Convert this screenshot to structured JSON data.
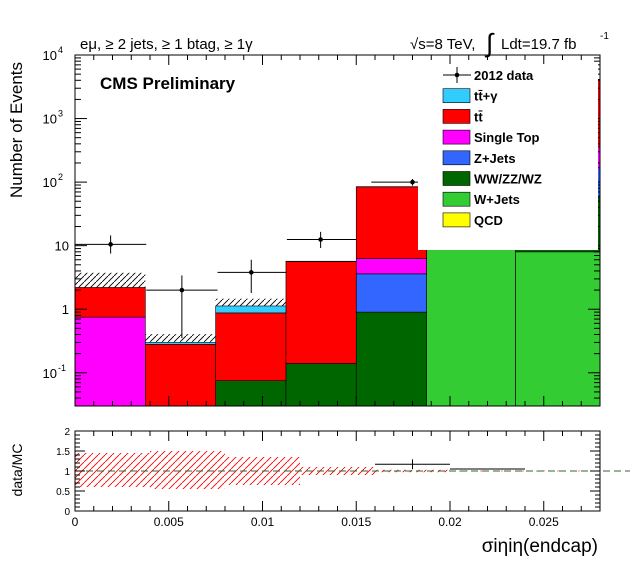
{
  "header": {
    "selection": "eμ, ≥ 2 jets, ≥ 1 btag, ≥ 1γ",
    "energy": "√s=8 TeV,",
    "lumi_int": "∫",
    "lumi": "Ldt=19.7 fb",
    "lumi_exp": "-1"
  },
  "banner": "CMS Preliminary",
  "colors": {
    "ttgamma": "#33ccff",
    "ttbar": "#ff0000",
    "singletop": "#ff00ff",
    "zjets": "#3366ff",
    "diboson": "#006600",
    "wjets": "#33cc33",
    "qcd": "#ffff00"
  },
  "chart_data": [
    {
      "type": "bar",
      "stacked": true,
      "log_y": true,
      "ylabel": "Number of Events",
      "xlim": [
        0,
        0.028
      ],
      "ylim": [
        0.03,
        10000
      ],
      "y_ticks": [
        {
          "v": 0.1,
          "label": "10",
          "exp": "-1"
        },
        {
          "v": 1,
          "label": "1",
          "exp": ""
        },
        {
          "v": 10,
          "label": "10",
          "exp": ""
        },
        {
          "v": 100,
          "label": "10",
          "exp": "2"
        },
        {
          "v": 1000,
          "label": "10",
          "exp": "3"
        },
        {
          "v": 10000,
          "label": "10",
          "exp": "4"
        }
      ],
      "bin_edges": [
        0,
        0.00375,
        0.0075,
        0.01125,
        0.015,
        0.01875,
        0.0235,
        0.028
      ],
      "series": [
        {
          "name": "W+Jets",
          "key": "wjets",
          "values": [
            0,
            0,
            0,
            0,
            0,
            11,
            8
          ]
        },
        {
          "name": "WW/ZZ/WZ",
          "key": "diboson",
          "values": [
            0,
            0,
            0.075,
            0.14,
            0.9,
            30,
            50
          ]
        },
        {
          "name": "Z+Jets",
          "key": "zjets",
          "values": [
            0,
            0,
            0,
            0,
            2.7,
            70,
            110
          ]
        },
        {
          "name": "Single Top",
          "key": "singletop",
          "values": [
            0.75,
            0,
            0,
            0,
            2.7,
            60,
            190
          ]
        },
        {
          "name": "tt̄",
          "key": "ttbar",
          "values": [
            1.45,
            0.28,
            0.8,
            5.5,
            78,
            2400,
            3700
          ]
        },
        {
          "name": "tt̄+γ",
          "key": "ttgamma",
          "values": [
            0,
            0.02,
            0.25,
            0.05,
            0.5,
            70,
            80
          ]
        },
        {
          "name": "QCD",
          "key": "qcd",
          "values": [
            0,
            0,
            0,
            0,
            0,
            0,
            0
          ]
        }
      ],
      "data_points": [
        {
          "x": 0.0019,
          "xlo": 0,
          "xhi": 0.0038,
          "y": 10.5,
          "ylo": 7.5,
          "yhi": 14.5
        },
        {
          "x": 0.0057,
          "xlo": 0.0038,
          "xhi": 0.0076,
          "y": 2.0,
          "ylo": 0.35,
          "yhi": 3.4
        },
        {
          "x": 0.0094,
          "xlo": 0.0076,
          "xhi": 0.0113,
          "y": 3.8,
          "ylo": 1.8,
          "yhi": 6.0
        },
        {
          "x": 0.0131,
          "xlo": 0.0113,
          "xhi": 0.015,
          "y": 12.5,
          "ylo": 9.2,
          "yhi": 16.5
        },
        {
          "x": 0.018,
          "xlo": 0.0158,
          "xhi": 0.0202,
          "y": 100,
          "ylo": 88,
          "yhi": 112
        }
      ],
      "legend_entries": [
        {
          "label": "2012 data",
          "kind": "data"
        },
        {
          "label": "tt̄+γ",
          "kind": "ttgamma"
        },
        {
          "label": "tt̄",
          "kind": "ttbar"
        },
        {
          "label": "Single Top",
          "kind": "singletop"
        },
        {
          "label": "Z+Jets",
          "kind": "zjets"
        },
        {
          "label": "WW/ZZ/WZ",
          "kind": "diboson"
        },
        {
          "label": "W+Jets",
          "kind": "wjets"
        },
        {
          "label": "QCD",
          "kind": "qcd"
        }
      ]
    },
    {
      "type": "scatter",
      "ylabel": "data/MC",
      "xlabel": "σiηiη(endcap)",
      "xlim": [
        0,
        0.028
      ],
      "ylim": [
        0,
        2
      ],
      "x_ticks": [
        {
          "v": 0,
          "label": "0"
        },
        {
          "v": 0.005,
          "label": "0.005"
        },
        {
          "v": 0.01,
          "label": "0.01"
        },
        {
          "v": 0.015,
          "label": "0.015"
        },
        {
          "v": 0.02,
          "label": "0.02"
        },
        {
          "v": 0.025,
          "label": "0.025"
        }
      ],
      "y_ticks": [
        {
          "v": 0,
          "label": "0"
        },
        {
          "v": 0.5,
          "label": "0.5"
        },
        {
          "v": 1,
          "label": "1"
        },
        {
          "v": 1.5,
          "label": "1.5"
        },
        {
          "v": 2,
          "label": "2"
        }
      ],
      "reference_line": 1,
      "uncertainty_bands": [
        {
          "xlo": 0,
          "xhi": 0.004,
          "lo": 0.6,
          "hi": 1.45
        },
        {
          "xlo": 0.004,
          "xhi": 0.008,
          "lo": 0.55,
          "hi": 1.5
        },
        {
          "xlo": 0.008,
          "xhi": 0.012,
          "lo": 0.65,
          "hi": 1.35
        },
        {
          "xlo": 0.012,
          "xhi": 0.016,
          "lo": 0.9,
          "hi": 1.1
        },
        {
          "xlo": 0.016,
          "xhi": 0.02,
          "lo": 0.97,
          "hi": 1.03
        },
        {
          "xlo": 0.02,
          "xhi": 0.028,
          "lo": 0.99,
          "hi": 1.01
        }
      ],
      "points": [
        {
          "x": 0.018,
          "xlo": 0.016,
          "xhi": 0.02,
          "y": 1.17,
          "ylo": 1.05,
          "yhi": 1.29
        },
        {
          "x": 0.022,
          "xlo": 0.02,
          "xhi": 0.024,
          "y": 1.05,
          "ylo": 1.05,
          "yhi": 1.05
        }
      ]
    }
  ]
}
